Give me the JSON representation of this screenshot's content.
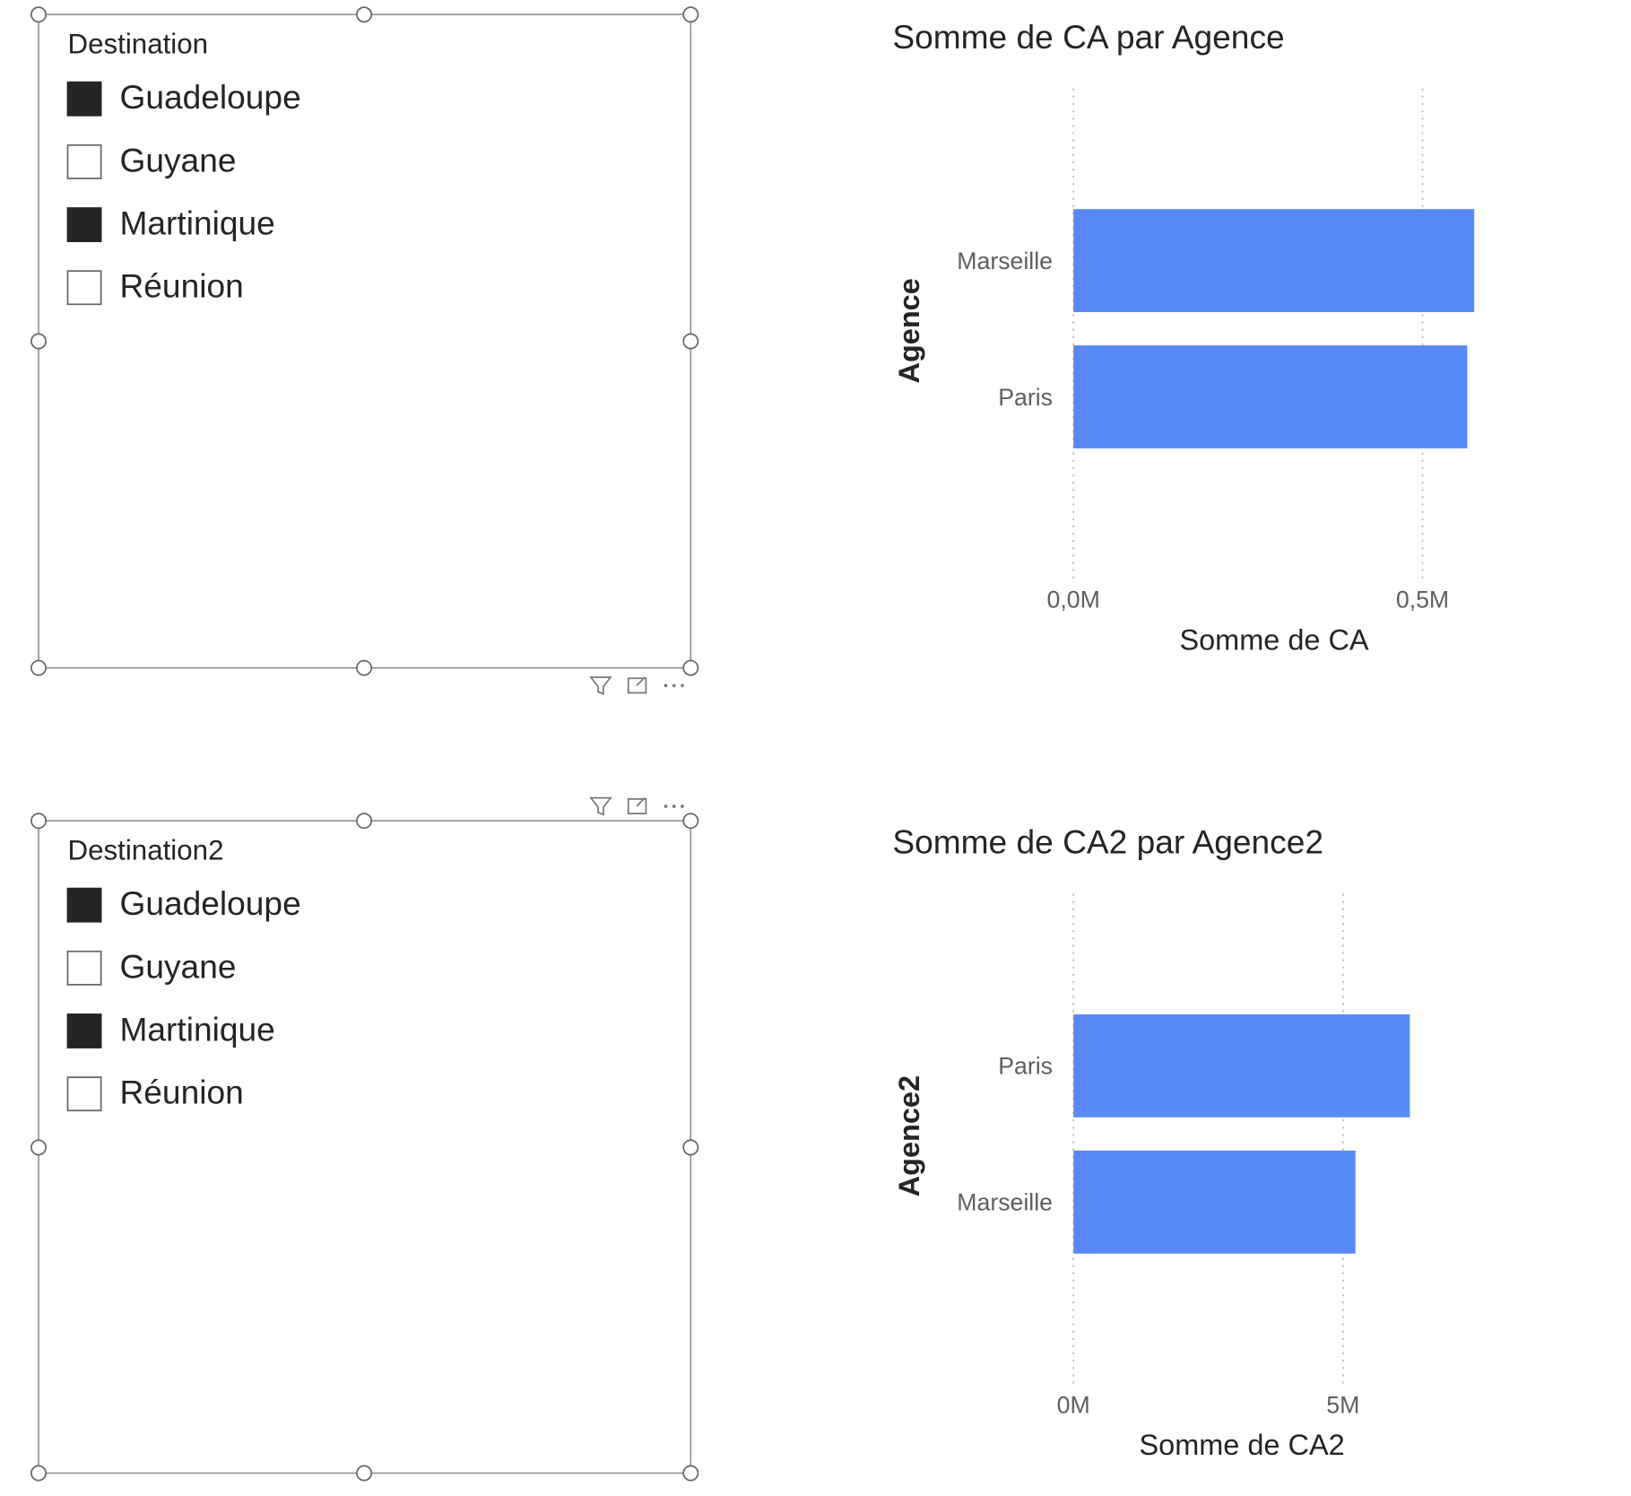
{
  "slicers": [
    {
      "title": "Destination",
      "items": [
        {
          "label": "Guadeloupe",
          "selected": true
        },
        {
          "label": "Guyane",
          "selected": false
        },
        {
          "label": "Martinique",
          "selected": true
        },
        {
          "label": "Réunion",
          "selected": false
        }
      ]
    },
    {
      "title": "Destination2",
      "items": [
        {
          "label": "Guadeloupe",
          "selected": true
        },
        {
          "label": "Guyane",
          "selected": false
        },
        {
          "label": "Martinique",
          "selected": true
        },
        {
          "label": "Réunion",
          "selected": false
        }
      ]
    }
  ],
  "chart_data": [
    {
      "type": "barh",
      "title": "Somme de CA par Agence",
      "x_label": "Somme de CA",
      "y_label": "Agence",
      "categories": [
        "Marseille",
        "Paris"
      ],
      "values": [
        574000,
        564000
      ],
      "color": "#578AF5",
      "xlim": [
        0,
        575000
      ],
      "xticks": [
        {
          "value": 0,
          "label": "0,0M"
        },
        {
          "value": 500000,
          "label": "0,5M"
        }
      ],
      "grid": true
    },
    {
      "type": "barh",
      "title": "Somme de CA2 par Agence2",
      "x_label": "Somme de CA2",
      "y_label": "Agence2",
      "categories": [
        "Paris",
        "Marseille"
      ],
      "values": [
        6240000,
        5230000
      ],
      "color": "#578AF5",
      "xlim": [
        0,
        6250000
      ],
      "xticks": [
        {
          "value": 0,
          "label": "0M"
        },
        {
          "value": 5000000,
          "label": "5M"
        }
      ],
      "grid": true
    }
  ]
}
